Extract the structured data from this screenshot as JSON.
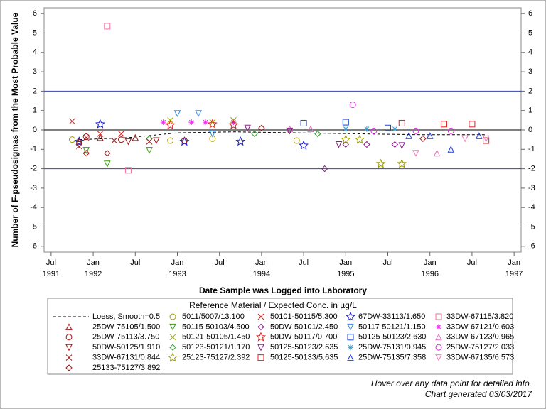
{
  "chart_data": {
    "type": "scatter",
    "y_label": "Number of F-pseudosigmas from the Most Probable Value",
    "x_label": "Date Sample was Logged into Laboratory",
    "legend_title": "Reference Material / Expected Conc. in µg/L",
    "xlim": [
      "1991-06",
      "1997-02"
    ],
    "xticks": [
      {
        "value": "1991-07",
        "label": "Jul",
        "year": "1991"
      },
      {
        "value": "1992-01",
        "label": "Jan",
        "year": "1992"
      },
      {
        "value": "1992-07",
        "label": "Jul"
      },
      {
        "value": "1993-01",
        "label": "Jan",
        "year": "1993"
      },
      {
        "value": "1993-07",
        "label": "Jul"
      },
      {
        "value": "1994-01",
        "label": "Jan",
        "year": "1994"
      },
      {
        "value": "1994-07",
        "label": "Jul"
      },
      {
        "value": "1995-01",
        "label": "Jan",
        "year": "1995"
      },
      {
        "value": "1995-07",
        "label": "Jul"
      },
      {
        "value": "1996-01",
        "label": "Jan",
        "year": "1996"
      },
      {
        "value": "1996-07",
        "label": "Jul"
      },
      {
        "value": "1997-01",
        "label": "Jan",
        "year": "1997"
      }
    ],
    "ylim": [
      -6.3,
      6.3
    ],
    "yticks": [
      -6,
      -5,
      -4,
      -3,
      -2,
      -1,
      0,
      1,
      2,
      3,
      4,
      5,
      6
    ],
    "reflines": [
      {
        "value": 2,
        "color": "#3344aa"
      },
      {
        "value": 0,
        "color": "#000000"
      },
      {
        "value": -2,
        "color": "#3344aa"
      }
    ],
    "series": [
      {
        "name": "Loess, Smooth=0.5",
        "marker": "line",
        "color": "#000000",
        "x": [
          "1991-11",
          "1992-06",
          "1993-01",
          "1993-09",
          "1994-06",
          "1995-03",
          "1995-12",
          "1996-09"
        ],
        "values": [
          -0.5,
          -0.4,
          -0.15,
          -0.1,
          -0.15,
          -0.2,
          -0.25,
          -0.25
        ]
      },
      {
        "name": "5011/5007/13.100",
        "marker": "circle",
        "color": "#a89a00",
        "x": [
          "1991-10",
          "1992-12",
          "1993-06",
          "1994-06"
        ],
        "values": [
          -0.5,
          -0.55,
          -0.45,
          -0.55
        ]
      },
      {
        "name": "50101-50115/5.300",
        "marker": "x",
        "color": "#e02020",
        "x": [
          "1991-10",
          "1991-11",
          "1992-02",
          "1992-05"
        ],
        "values": [
          0.45,
          -0.85,
          -0.2,
          -0.2
        ]
      },
      {
        "name": "67DW-33113/1.650",
        "marker": "star",
        "color": "#1a1ad0",
        "x": [
          "1991-11",
          "1992-02",
          "1993-02",
          "1993-10",
          "1994-07"
        ],
        "values": [
          -0.6,
          0.3,
          -0.6,
          -0.6,
          -0.8
        ]
      },
      {
        "name": "33DW-67115/3.820",
        "marker": "square",
        "color": "#f070a0",
        "x": [
          "1992-03",
          "1992-06"
        ],
        "values": [
          5.35,
          -2.08
        ]
      },
      {
        "name": "25DW-75105/1.500",
        "marker": "triangle",
        "color": "#a01818",
        "x": [
          "1991-11",
          "1992-02",
          "1992-07"
        ],
        "values": [
          -0.6,
          -0.4,
          -0.4
        ]
      },
      {
        "name": "50115-50103/4.500",
        "marker": "triangle-down",
        "color": "#3a9a10",
        "x": [
          "1991-12",
          "1992-03",
          "1992-09"
        ],
        "values": [
          -1.05,
          -1.75,
          -1.05
        ]
      },
      {
        "name": "50DW-50101/2.450",
        "marker": "diamond",
        "color": "#8a1a8a",
        "x": [
          "1994-10",
          "1995-01",
          "1995-04",
          "1995-08"
        ],
        "values": [
          -2.0,
          -0.75,
          -0.75,
          -0.75
        ]
      },
      {
        "name": "50117-50121/1.150",
        "marker": "triangle-down",
        "color": "#3388dd",
        "x": [
          "1993-01",
          "1993-04",
          "1993-06"
        ],
        "values": [
          0.85,
          0.85,
          -0.2
        ]
      },
      {
        "name": "33DW-67121/0.603",
        "marker": "asterisk",
        "color": "#ee22ee",
        "x": [
          "1992-11",
          "1993-03",
          "1993-05",
          "1993-09"
        ],
        "values": [
          0.4,
          0.4,
          0.4,
          0.4
        ]
      },
      {
        "name": "25DW-75113/3.750",
        "marker": "circle",
        "color": "#a01818",
        "x": [
          "1991-12",
          "1992-05",
          "1993-02"
        ],
        "values": [
          -0.35,
          -0.5,
          -0.55
        ]
      },
      {
        "name": "50121-50105/1.450",
        "marker": "x",
        "color": "#99aa00",
        "x": [
          "1992-12",
          "1993-06",
          "1993-09"
        ],
        "values": [
          0.5,
          0.4,
          0.5
        ]
      },
      {
        "name": "50DW-50117/0.700",
        "marker": "star",
        "color": "#e02020",
        "x": [
          "1992-12",
          "1993-06",
          "1993-09"
        ],
        "values": [
          0.25,
          0.3,
          0.25
        ]
      },
      {
        "name": "50125-50123/2.630",
        "marker": "square",
        "color": "#2244cc",
        "x": [
          "1994-07",
          "1995-01",
          "1995-07"
        ],
        "values": [
          0.35,
          0.4,
          0.1
        ]
      },
      {
        "name": "33DW-67123/0.965",
        "marker": "triangle",
        "color": "#e070c0",
        "x": [
          "1994-05",
          "1994-08",
          "1996-02"
        ],
        "values": [
          0.05,
          0.05,
          -1.2
        ]
      },
      {
        "name": "50DW-50125/1.910",
        "marker": "triangle-down",
        "color": "#a01818",
        "x": [
          "1991-11",
          "1992-06",
          "1992-10"
        ],
        "values": [
          -0.75,
          -0.6,
          -0.55
        ]
      },
      {
        "name": "50123-50121/1.170",
        "marker": "diamond",
        "color": "#2a9d2a",
        "x": [
          "1992-09",
          "1993-12",
          "1994-09"
        ],
        "values": [
          -0.45,
          -0.2,
          -0.2
        ]
      },
      {
        "name": "50125-50123/2.635",
        "marker": "triangle-down",
        "color": "#8a1a8a",
        "x": [
          "1993-11",
          "1994-05",
          "1994-12",
          "1995-09"
        ],
        "values": [
          0.1,
          -0.05,
          -0.75,
          -0.8
        ]
      },
      {
        "name": "25DW-75131/0.945",
        "marker": "asterisk",
        "color": "#3399cc",
        "x": [
          "1995-01",
          "1995-04",
          "1995-08"
        ],
        "values": [
          0.05,
          0.05,
          0.05
        ]
      },
      {
        "name": "25DW-75127/2.033",
        "marker": "circle",
        "color": "#dd33dd",
        "x": [
          "1995-02",
          "1995-05",
          "1995-11",
          "1996-04"
        ],
        "values": [
          1.3,
          -0.05,
          -0.05,
          -0.05
        ]
      },
      {
        "name": "33DW-67131/0.844",
        "marker": "x",
        "color": "#a01818",
        "x": [
          "1991-12",
          "1992-04",
          "1992-09"
        ],
        "values": [
          -0.4,
          -0.55,
          -0.6
        ]
      },
      {
        "name": "25123-75127/2.392",
        "marker": "star",
        "color": "#999900",
        "x": [
          "1995-01",
          "1995-03",
          "1995-06",
          "1995-09"
        ],
        "values": [
          -0.5,
          -0.5,
          -1.75,
          -1.75
        ]
      },
      {
        "name": "50125-50133/5.635",
        "marker": "square",
        "color": "#e02020",
        "x": [
          "1995-09",
          "1996-03",
          "1996-07",
          "1996-09"
        ],
        "values": [
          0.35,
          0.3,
          0.3,
          -0.55
        ]
      },
      {
        "name": "25DW-75135/7.358",
        "marker": "triangle",
        "color": "#1a3ae0",
        "x": [
          "1995-10",
          "1996-01",
          "1996-04",
          "1996-08"
        ],
        "values": [
          -0.3,
          -0.3,
          -1.0,
          -0.3
        ]
      },
      {
        "name": "33DW-67135/6.573",
        "marker": "triangle-down",
        "color": "#f07ab8",
        "x": [
          "1995-11",
          "1996-06",
          "1996-09"
        ],
        "values": [
          -1.2,
          -0.45,
          -0.45
        ]
      },
      {
        "name": "25133-75127/3.892",
        "marker": "diamond",
        "color": "#a01818",
        "x": [
          "1991-12",
          "1992-03",
          "1994-01",
          "1995-12"
        ],
        "values": [
          -1.2,
          -1.2,
          0.1,
          -0.45
        ]
      }
    ]
  },
  "footer": {
    "hint": "Hover over any data point for detailed info.",
    "generated": "Chart generated 03/03/2017"
  }
}
